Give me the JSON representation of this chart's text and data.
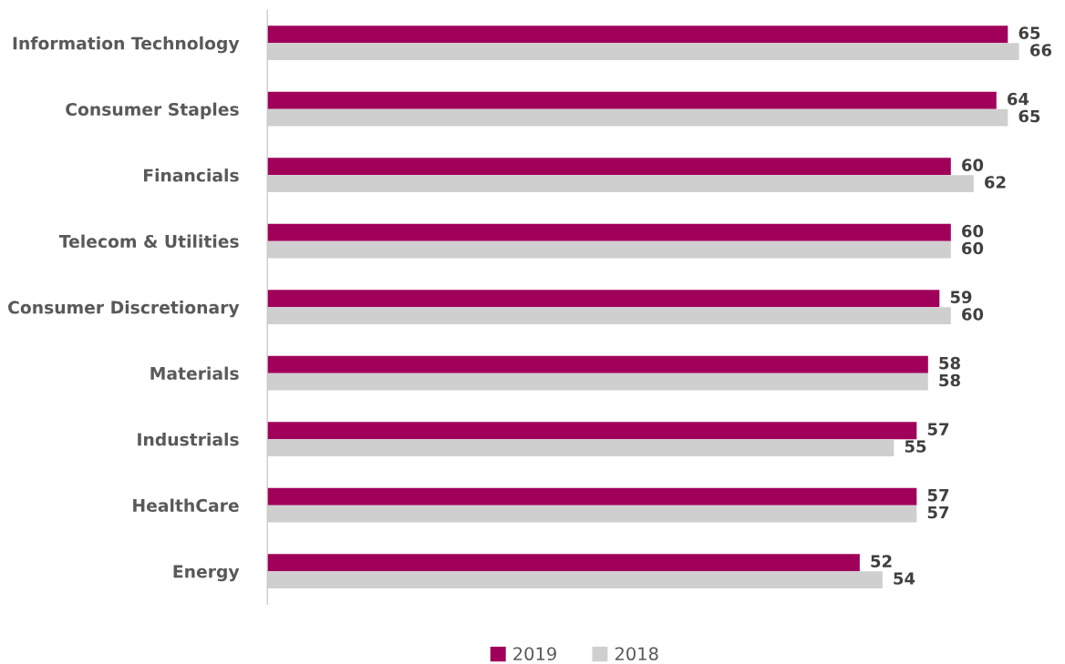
{
  "chart_data": {
    "type": "bar",
    "orientation": "horizontal",
    "categories": [
      "Information Technology",
      "Consumer Staples",
      "Financials",
      "Telecom & Utilities",
      "Consumer Discretionary",
      "Materials",
      "Industrials",
      "HealthCare",
      "Energy"
    ],
    "series": [
      {
        "name": "2019",
        "color": "#a0005a",
        "values": [
          65,
          64,
          60,
          60,
          59,
          58,
          57,
          57,
          52
        ]
      },
      {
        "name": "2018",
        "color": "#d0cfd0",
        "values": [
          66,
          65,
          62,
          60,
          60,
          58,
          55,
          57,
          54
        ]
      }
    ],
    "tick_labels": "y",
    "data_labels": true,
    "legend": "bottom",
    "grid": false
  }
}
